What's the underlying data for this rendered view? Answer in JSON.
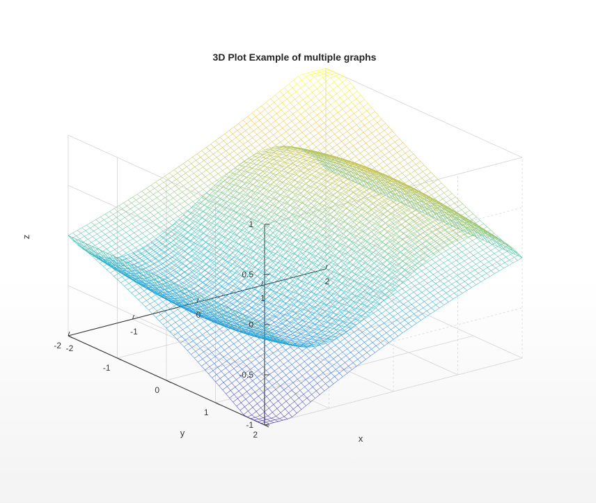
{
  "chart_data": {
    "type": "surface",
    "title": "3D Plot Example of multiple graphs",
    "xlabel": "x",
    "ylabel": "y",
    "zlabel": "z",
    "xlim": [
      -2,
      2
    ],
    "ylim": [
      -2,
      2
    ],
    "zlim": [
      -1,
      1
    ],
    "x_ticks": [
      -2,
      -1,
      0,
      1,
      2
    ],
    "y_ticks": [
      -2,
      -1,
      0,
      1,
      2
    ],
    "z_ticks": [
      -1,
      -0.5,
      0,
      0.5,
      1
    ],
    "grid": true,
    "colormap": [
      "#3e26a8",
      "#2f6ee6",
      "#1ea8d4",
      "#48c1a6",
      "#a9c463",
      "#f0bd3a",
      "#f9fb15"
    ],
    "series": [
      {
        "surface": "saddle",
        "z_at": [
          {
            "x": -2,
            "y": -2,
            "z": 0
          },
          {
            "x": 2,
            "y": 2,
            "z": 0
          },
          {
            "x": 2,
            "y": -2,
            "z": 0.95
          },
          {
            "x": -2,
            "y": 2,
            "z": -0.9
          },
          {
            "x": 0,
            "y": 0,
            "z": 0
          }
        ]
      },
      {
        "surface": "cubic",
        "z_at": [
          {
            "x": -2,
            "y": 0,
            "z": 0
          },
          {
            "x": -1,
            "y": 0,
            "z": -0.5
          },
          {
            "x": 0,
            "y": 0,
            "z": 0
          },
          {
            "x": 1,
            "y": 0,
            "z": 0.5
          },
          {
            "x": 2,
            "y": 0,
            "z": 0
          }
        ]
      }
    ]
  }
}
